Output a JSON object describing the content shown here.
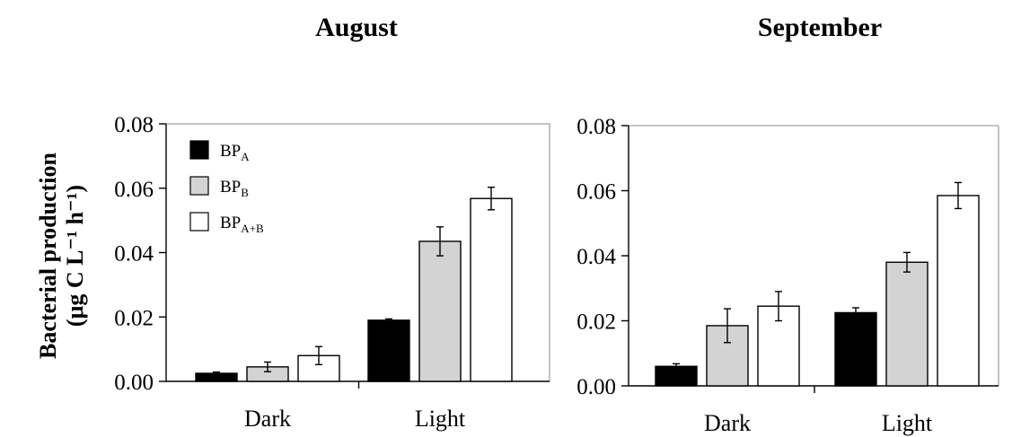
{
  "ylabel_line1": "Bacterial production",
  "ylabel_line2": "(μg C L⁻¹ h⁻¹)",
  "legend": [
    {
      "base": "BP",
      "sub": "A"
    },
    {
      "base": "BP",
      "sub": "B"
    },
    {
      "base": "BP",
      "sub": "A+B"
    }
  ],
  "colors": {
    "BPA": "#000000",
    "BPB": "#d3d3d3",
    "BPAB": "#ffffff"
  },
  "chart_data": [
    {
      "type": "bar",
      "title": "August",
      "categories": [
        "Dark",
        "Light"
      ],
      "ylim": [
        0,
        0.08
      ],
      "yticks": [
        "0.00",
        "0.02",
        "0.04",
        "0.06",
        "0.08"
      ],
      "series": [
        {
          "name": "BPA",
          "values": [
            0.0025,
            0.019
          ],
          "errors": [
            0.0004,
            0.0004
          ]
        },
        {
          "name": "BPB",
          "values": [
            0.0045,
            0.0435
          ],
          "errors": [
            0.0015,
            0.0045
          ]
        },
        {
          "name": "BPA+B",
          "values": [
            0.008,
            0.0568
          ],
          "errors": [
            0.0028,
            0.0035
          ]
        }
      ]
    },
    {
      "type": "bar",
      "title": "September",
      "categories": [
        "Dark",
        "Light"
      ],
      "ylim": [
        0,
        0.08
      ],
      "yticks": [
        "0.00",
        "0.02",
        "0.04",
        "0.06",
        "0.08"
      ],
      "series": [
        {
          "name": "BPA",
          "values": [
            0.006,
            0.0225
          ],
          "errors": [
            0.0008,
            0.0015
          ]
        },
        {
          "name": "BPB",
          "values": [
            0.0185,
            0.038
          ],
          "errors": [
            0.0052,
            0.003
          ]
        },
        {
          "name": "BPA+B",
          "values": [
            0.0245,
            0.0585
          ],
          "errors": [
            0.0045,
            0.004
          ]
        }
      ]
    }
  ]
}
